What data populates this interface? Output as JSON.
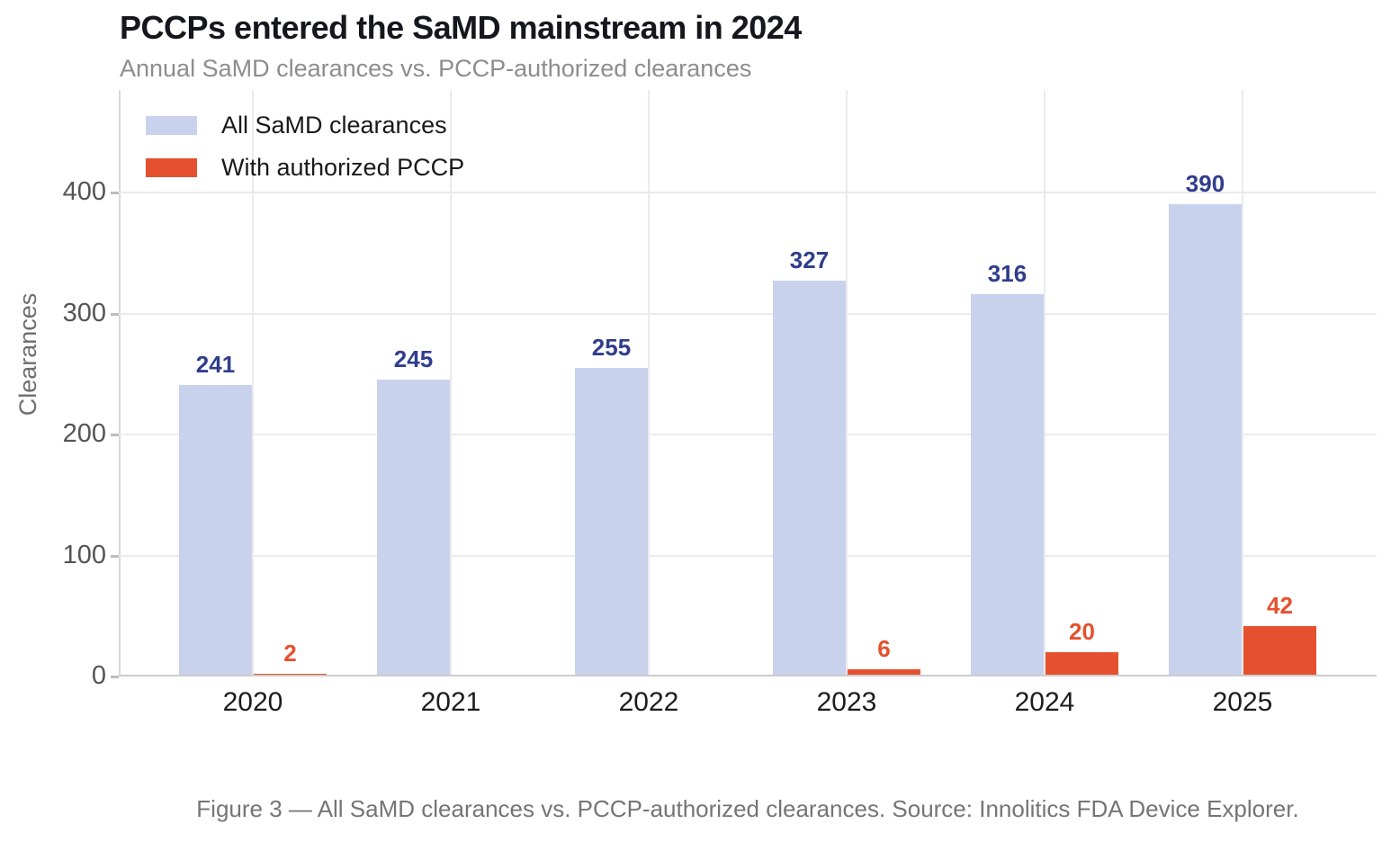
{
  "page": {
    "title": "PCCPs entered the SaMD mainstream in 2024",
    "subtitle": "Annual SaMD clearances vs. PCCP-authorized clearances",
    "caption": "Figure 3 — All SaMD clearances vs. PCCP-authorized clearances. Source: Innolitics FDA Device Explorer."
  },
  "chart_data": {
    "type": "bar",
    "title": "PCCPs entered the SaMD mainstream in 2024",
    "subtitle": "Annual SaMD clearances vs. PCCP-authorized clearances",
    "categories": [
      "2020",
      "2021",
      "2022",
      "2023",
      "2024",
      "2025"
    ],
    "series": [
      {
        "name": "All SaMD clearances",
        "key": "all-samd",
        "color": "#c9d2ed",
        "label_color": "#303d8d",
        "values": [
          241,
          245,
          255,
          327,
          316,
          390
        ]
      },
      {
        "name": "With authorized PCCP",
        "key": "pccp",
        "color": "#e5512f",
        "label_color": "#e5512f",
        "values": [
          2,
          0,
          0,
          6,
          20,
          42
        ]
      }
    ],
    "xlabel": "",
    "ylabel": "Clearances",
    "yticks": [
      0,
      100,
      200,
      300,
      400
    ],
    "ylim": [
      0,
      485
    ],
    "grid": true,
    "legend_position": "upper-left",
    "bar_labels": true,
    "hide_zero_labels": true
  }
}
